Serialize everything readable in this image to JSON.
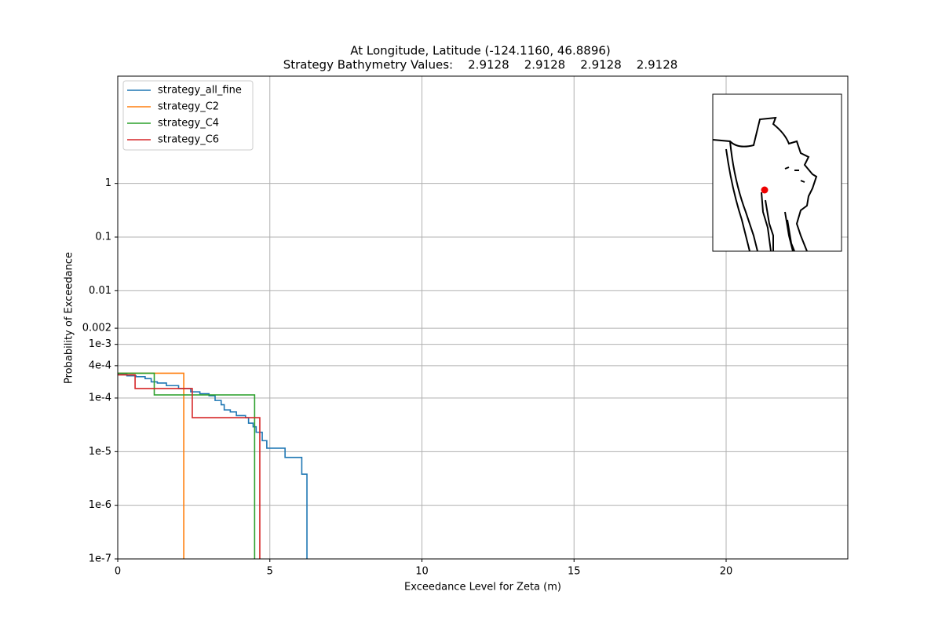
{
  "chart_data": {
    "type": "line",
    "drawstyle": "steps-post",
    "title": "At Longitude, Latitude (-124.1160,  46.8896)",
    "subtitle": "Strategy Bathymetry Values:    2.9128    2.9128    2.9128    2.9128",
    "x_label": "Exceedance Level for Zeta (m)",
    "y_label": "Probability of Exceedance",
    "xlim": [
      0,
      24
    ],
    "xticks": [
      0,
      5,
      10,
      15,
      20
    ],
    "ylim": [
      1e-07,
      100
    ],
    "log_y": true,
    "grid": true,
    "legend": "upper left",
    "yticks": [
      {
        "value": 1e-07,
        "label": "1e-7"
      },
      {
        "value": 1e-06,
        "label": "1e-6"
      },
      {
        "value": 1e-05,
        "label": "1e-5"
      },
      {
        "value": 0.0001,
        "label": "1e-4"
      },
      {
        "value": 0.0004,
        "label": "4e-4"
      },
      {
        "value": 0.001,
        "label": "1e-3"
      },
      0.002,
      0.01,
      0.1,
      1
    ],
    "series": [
      {
        "name": "strategy_all_fine",
        "color": "#1f77b4",
        "x": [
          0,
          0.3,
          0.6,
          0.9,
          1.1,
          1.3,
          1.6,
          2.0,
          2.4,
          2.7,
          3.0,
          3.2,
          3.4,
          3.5,
          3.7,
          3.9,
          4.2,
          4.3,
          4.45,
          4.55,
          4.75,
          4.9,
          5.5,
          6.05,
          6.22
        ],
        "values": [
          0.00028,
          0.00026,
          0.00025,
          0.00023,
          0.0002,
          0.00019,
          0.00017,
          0.00015,
          0.00013,
          0.00012,
          0.00011,
          9e-05,
          7.5e-05,
          6e-05,
          5.5e-05,
          4.7e-05,
          4.3e-05,
          3.4e-05,
          2.9e-05,
          2.3e-05,
          1.6e-05,
          1.16e-05,
          7.8e-06,
          3.8e-06,
          0
        ]
      },
      {
        "name": "strategy_C2",
        "color": "#ff7f0e",
        "x": [
          0,
          2.17
        ],
        "values": [
          0.00029,
          0
        ]
      },
      {
        "name": "strategy_C4",
        "color": "#2ca02c",
        "x": [
          0,
          1.2,
          4.5
        ],
        "values": [
          0.00029,
          0.000114,
          0
        ]
      },
      {
        "name": "strategy_C6",
        "color": "#d62728",
        "x": [
          0,
          0.57,
          2.45,
          4.67
        ],
        "values": [
          0.00027,
          0.00015,
          4.3e-05,
          0
        ]
      }
    ]
  }
}
